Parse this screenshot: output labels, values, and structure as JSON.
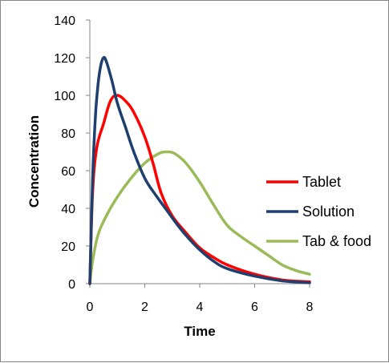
{
  "chart_data": {
    "type": "line",
    "title": "",
    "xlabel": "Time",
    "ylabel": "Concentration",
    "xlim": [
      0,
      8
    ],
    "ylim": [
      0,
      140
    ],
    "xticks": [
      0,
      2,
      4,
      6,
      8
    ],
    "yticks": [
      0,
      20,
      40,
      60,
      80,
      100,
      120,
      140
    ],
    "grid": false,
    "legend": "right",
    "series": [
      {
        "name": "Tablet",
        "color": "#ff0000",
        "x": [
          0,
          0.1,
          0.25,
          0.5,
          0.75,
          1.0,
          1.3,
          1.6,
          2.0,
          2.3,
          2.6,
          3.0,
          3.5,
          4.0,
          4.5,
          5.0,
          6.0,
          7.0,
          8.0
        ],
        "y": [
          0,
          48,
          72,
          85,
          97,
          100,
          97,
          91,
          78,
          64,
          48,
          36,
          27,
          19,
          14,
          10,
          5,
          2,
          1
        ]
      },
      {
        "name": "Solution",
        "color": "#1f3f6e",
        "x": [
          0,
          0.1,
          0.2,
          0.3,
          0.4,
          0.5,
          0.6,
          0.8,
          1.0,
          1.3,
          1.6,
          2.0,
          2.4,
          2.8,
          3.2,
          3.6,
          4.0,
          4.5,
          5.0,
          6.0,
          7.0,
          8.0
        ],
        "y": [
          0,
          55,
          88,
          106,
          116,
          120,
          118,
          108,
          96,
          83,
          70,
          56,
          47,
          39,
          31,
          24,
          18,
          12,
          8,
          4,
          1.5,
          0.5
        ]
      },
      {
        "name": "Tab & food",
        "color": "#9bbb59",
        "x": [
          0,
          0.1,
          0.3,
          0.6,
          1.0,
          1.5,
          2.0,
          2.5,
          2.8,
          3.1,
          3.5,
          4.0,
          4.5,
          5.0,
          5.5,
          6.0,
          6.5,
          7.0,
          7.5,
          8.0
        ],
        "y": [
          0,
          12,
          26,
          36,
          46,
          56,
          64,
          69,
          70,
          69,
          64,
          54,
          42,
          31,
          25,
          20,
          15,
          10,
          7,
          5
        ]
      }
    ]
  }
}
